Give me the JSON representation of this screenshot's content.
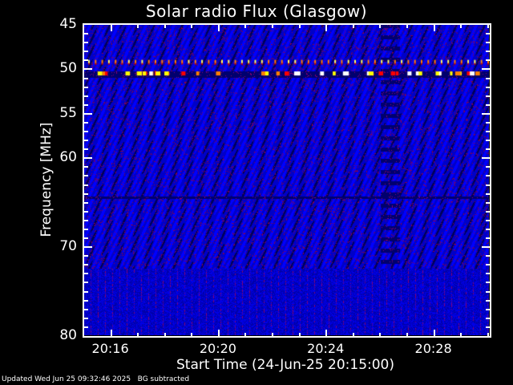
{
  "chart_data": {
    "type": "heatmap",
    "title": "Solar radio Flux (Glasgow)",
    "xlabel": "Start Time (24-Jun-25 20:15:00)",
    "ylabel": "Frequency [MHz]",
    "xlim": [
      "20:15:00",
      "20:30:04"
    ],
    "ylim": [
      80,
      45
    ],
    "x_ticks": [
      "20:16",
      "20:20",
      "20:24",
      "20:28"
    ],
    "x_tick_minutes": [
      16,
      20,
      24,
      28
    ],
    "y_ticks": [
      "45",
      "50",
      "55",
      "60",
      "70",
      "80"
    ],
    "y_tick_values": [
      45,
      50,
      55,
      60,
      70,
      80
    ],
    "colormap": [
      "#000080",
      "#0000ff",
      "#800040",
      "#ff0000",
      "#ff8000",
      "#ffff00",
      "#ffffff"
    ],
    "features": {
      "interference_lines_mhz": [
        49.3,
        50.6
      ],
      "dark_band_mhz": [
        64.5
      ],
      "lower_band_start_mhz": 72.5
    }
  },
  "footer": {
    "updated": "Updated Wed Jun 25 09:32:46 2025",
    "note": "BG subtracted"
  }
}
